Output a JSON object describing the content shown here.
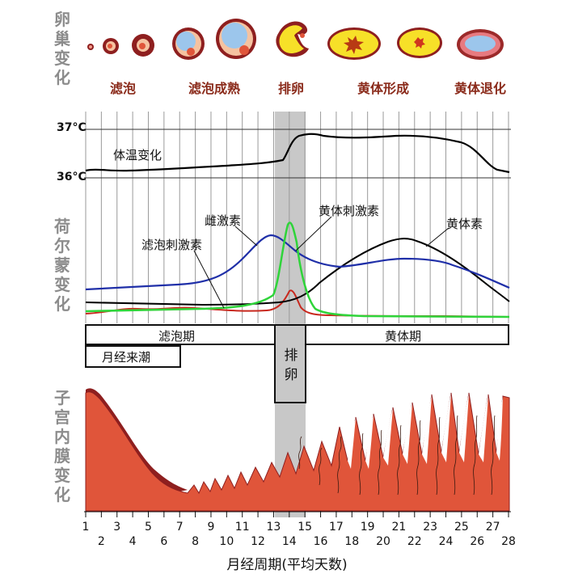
{
  "section_labels": {
    "ovary": "卵巢变化",
    "hormone": "荷尔蒙变化",
    "endometrium": "子宫内膜变化"
  },
  "ovary_stages": [
    "滤泡",
    "滤泡成熟",
    "排卵",
    "黄体形成",
    "黄体退化"
  ],
  "temperature": {
    "label": "体温变化",
    "high_label": "37°C",
    "low_label": "36°C"
  },
  "hormones": {
    "estrogen": "雌激素",
    "fsh": "滤泡刺激素",
    "lh": "黄体刺激素",
    "progesterone": "黄体素"
  },
  "phases": {
    "follicular": "滤泡期",
    "luteal": "黄体期",
    "ovulation": "排卵",
    "menstruation": "月经来潮"
  },
  "days": [
    "1",
    "2",
    "3",
    "4",
    "5",
    "6",
    "7",
    "8",
    "9",
    "10",
    "11",
    "12",
    "13",
    "14",
    "15",
    "16",
    "17",
    "18",
    "19",
    "20",
    "21",
    "22",
    "23",
    "24",
    "25",
    "26",
    "27",
    "28"
  ],
  "x_axis_title": "月经周期(平均天数)",
  "colors": {
    "section_label": "#8c8c8c",
    "ovary_label": "#8a2a1a",
    "estrogen": "#1f2fa8",
    "lh": "#2fd43a",
    "fsh": "#c8281e",
    "progesterone": "#000000",
    "endometrium": "#e0553a",
    "endometrium_dark": "#8e1f1f",
    "ovulation_band": "#c8c8c8"
  }
}
